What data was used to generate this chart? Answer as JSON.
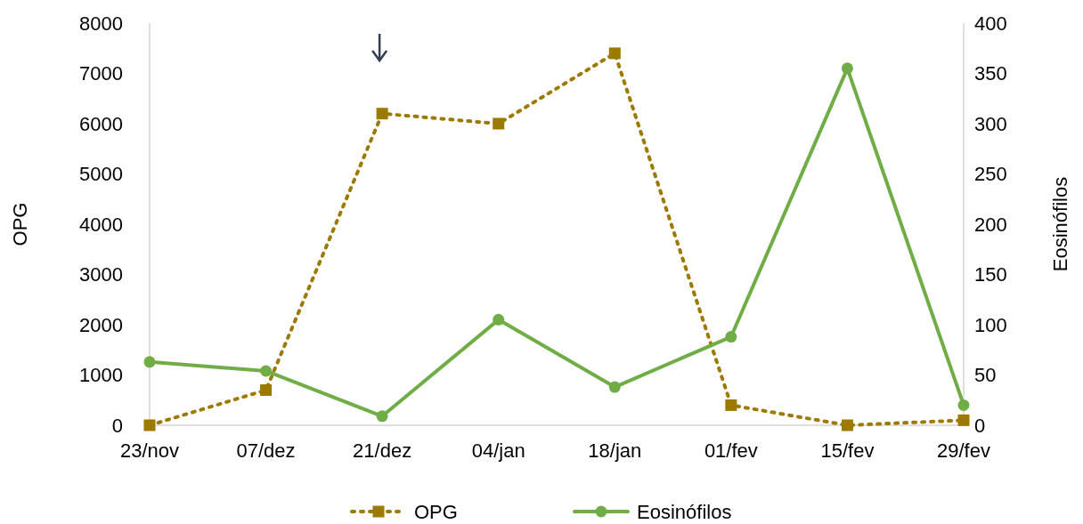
{
  "chart_data": {
    "type": "line",
    "ylabel": "OPG",
    "y2label": "Eosinófilos",
    "categories": [
      "23/nov",
      "07/dez",
      "21/dez",
      "04/jan",
      "18/jan",
      "01/fev",
      "15/fev",
      "29/fev"
    ],
    "series": [
      {
        "name": "OPG",
        "color": "#9c7a00",
        "values": [
          0,
          700,
          6200,
          6000,
          7400,
          400,
          0,
          100
        ],
        "marker": "square",
        "line_style": "dotted"
      },
      {
        "name": "Eosinófilos",
        "color": "#70ad47",
        "values": [
          63,
          54,
          9,
          105,
          38,
          88,
          355,
          20
        ],
        "axis": "y2",
        "marker": "circle",
        "line_style": "solid"
      }
    ],
    "ylim": [
      0,
      8000
    ],
    "yticks": [
      0,
      1000,
      2000,
      3000,
      4000,
      5000,
      6000,
      7000,
      8000
    ],
    "y2lim": [
      0,
      400
    ],
    "y2ticks": [
      0,
      50,
      100,
      150,
      200,
      250,
      300,
      350,
      400
    ],
    "grid": false,
    "legend": "bottom"
  }
}
